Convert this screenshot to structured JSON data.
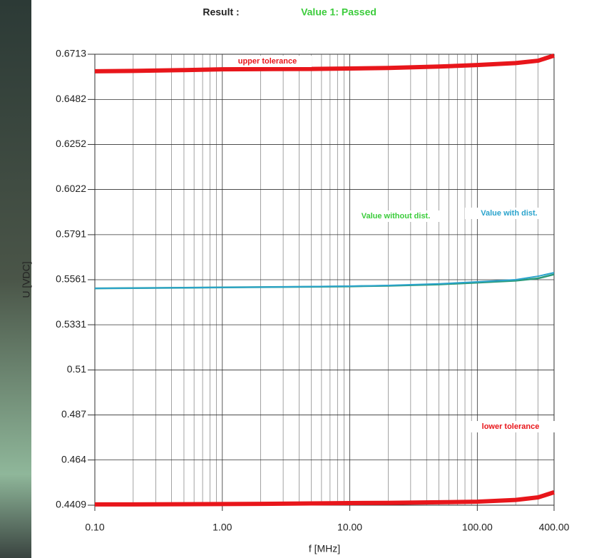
{
  "chart_data": {
    "type": "line",
    "result_label": "Result :",
    "result_value": "Value 1: Passed",
    "ylabel": "U [VDC]",
    "xlabel": "f [MHz]",
    "log_x": true,
    "grid": true,
    "xlim": [
      0.1,
      400
    ],
    "xticks": [
      {
        "value": 0.1,
        "label": "0.10"
      },
      {
        "value": 1,
        "label": "1.00"
      },
      {
        "value": 10,
        "label": "10.00"
      },
      {
        "value": 100,
        "label": "100.00"
      },
      {
        "value": 400,
        "label": "400.00"
      }
    ],
    "xminorticks": [
      0.2,
      0.3,
      0.4,
      0.5,
      0.6,
      0.7,
      0.8,
      0.9,
      2,
      3,
      4,
      5,
      6,
      7,
      8,
      9,
      20,
      30,
      40,
      50,
      60,
      70,
      80,
      90,
      200,
      300
    ],
    "ylim": [
      0.4409,
      0.6713
    ],
    "yticks": [
      0.4409,
      0.464,
      0.487,
      0.51,
      0.5331,
      0.5561,
      0.5791,
      0.6022,
      0.6252,
      0.6482,
      0.6713
    ],
    "x": [
      0.1,
      0.2,
      0.5,
      1,
      2,
      5,
      10,
      20,
      50,
      100,
      200,
      300,
      400
    ],
    "series": [
      {
        "name": "upper tolerance",
        "color": "#e8161b",
        "width": 6,
        "values": [
          0.6626,
          0.6628,
          0.6632,
          0.6636,
          0.6637,
          0.6638,
          0.664,
          0.6643,
          0.665,
          0.6658,
          0.6668,
          0.668,
          0.6706
        ]
      },
      {
        "name": "lower tolerance",
        "color": "#e8161b",
        "width": 6,
        "values": [
          0.4413,
          0.4413,
          0.4414,
          0.4415,
          0.4416,
          0.4418,
          0.442,
          0.4421,
          0.4424,
          0.4427,
          0.4436,
          0.4449,
          0.4475
        ]
      },
      {
        "name": "Value without dist.",
        "color": "#2a9a7a",
        "width": 2.5,
        "values": [
          0.5517,
          0.5518,
          0.552,
          0.5522,
          0.5523,
          0.5525,
          0.5527,
          0.553,
          0.5537,
          0.5546,
          0.5556,
          0.5568,
          0.5588
        ]
      },
      {
        "name": "Value with dist.",
        "color": "#2aa3cc",
        "width": 2,
        "values": [
          0.5517,
          0.5518,
          0.552,
          0.5522,
          0.5523,
          0.5526,
          0.5528,
          0.5532,
          0.554,
          0.555,
          0.5561,
          0.5579,
          0.5597
        ]
      }
    ]
  }
}
